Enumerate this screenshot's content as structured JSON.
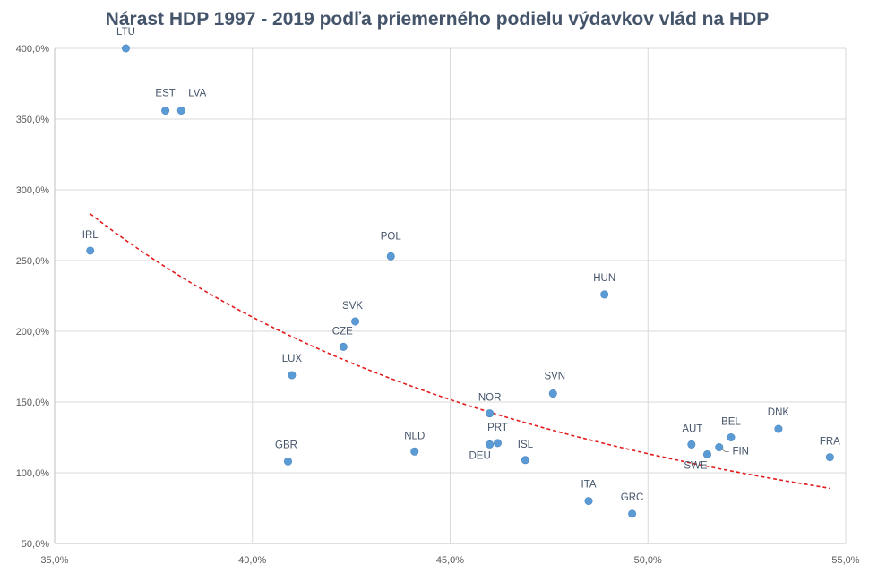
{
  "chart_data": {
    "type": "scatter",
    "title": "Nárast HDP 1997 - 2019 podľa priemerného podielu výdavkov vlád na HDP",
    "xlabel": "",
    "ylabel": "",
    "xlim": [
      35,
      55
    ],
    "ylim": [
      50,
      400
    ],
    "x_ticks": [
      {
        "value": 35,
        "label": "35,0%"
      },
      {
        "value": 40,
        "label": "40,0%"
      },
      {
        "value": 45,
        "label": "45,0%"
      },
      {
        "value": 50,
        "label": "50,0%"
      },
      {
        "value": 55,
        "label": "55,0%"
      }
    ],
    "y_ticks": [
      {
        "value": 50,
        "label": "50,0%"
      },
      {
        "value": 100,
        "label": "100,0%"
      },
      {
        "value": 150,
        "label": "150,0%"
      },
      {
        "value": 200,
        "label": "200,0%"
      },
      {
        "value": 250,
        "label": "250,0%"
      },
      {
        "value": 300,
        "label": "300,0%"
      },
      {
        "value": 350,
        "label": "350,0%"
      },
      {
        "value": 400,
        "label": "400,0%"
      }
    ],
    "grid": true,
    "legend": "none",
    "series": [
      {
        "points": [
          {
            "label": "LTU",
            "x": 36.8,
            "y": 400
          },
          {
            "label": "EST",
            "x": 37.8,
            "y": 356
          },
          {
            "label": "LVA",
            "x": 38.2,
            "y": 356
          },
          {
            "label": "IRL",
            "x": 35.9,
            "y": 257
          },
          {
            "label": "POL",
            "x": 43.5,
            "y": 253
          },
          {
            "label": "SVK",
            "x": 42.6,
            "y": 207
          },
          {
            "label": "CZE",
            "x": 42.3,
            "y": 189
          },
          {
            "label": "LUX",
            "x": 41.0,
            "y": 169
          },
          {
            "label": "GBR",
            "x": 40.9,
            "y": 108
          },
          {
            "label": "NLD",
            "x": 44.1,
            "y": 115
          },
          {
            "label": "HUN",
            "x": 48.9,
            "y": 226
          },
          {
            "label": "SVN",
            "x": 47.6,
            "y": 156
          },
          {
            "label": "NOR",
            "x": 46.0,
            "y": 142
          },
          {
            "label": "PRT",
            "x": 46.2,
            "y": 121
          },
          {
            "label": "DEU",
            "x": 46.0,
            "y": 120
          },
          {
            "label": "ISL",
            "x": 46.9,
            "y": 109
          },
          {
            "label": "ITA",
            "x": 48.5,
            "y": 80
          },
          {
            "label": "GRC",
            "x": 49.6,
            "y": 71
          },
          {
            "label": "AUT",
            "x": 51.1,
            "y": 120
          },
          {
            "label": "SWE",
            "x": 51.5,
            "y": 113
          },
          {
            "label": "FIN",
            "x": 51.8,
            "y": 118
          },
          {
            "label": "BEL",
            "x": 52.1,
            "y": 125
          },
          {
            "label": "DNK",
            "x": 53.3,
            "y": 131
          },
          {
            "label": "FRA",
            "x": 54.6,
            "y": 111
          }
        ]
      }
    ],
    "trendline": {
      "type": "power",
      "style": "dashed",
      "color": "#e31a1c",
      "x_range": [
        35.9,
        54.6
      ],
      "y_start": 283,
      "y_end": 89
    },
    "colors": {
      "point": "#5b9bd5",
      "title": "#44546a",
      "grid": "#d9d9d9"
    }
  }
}
